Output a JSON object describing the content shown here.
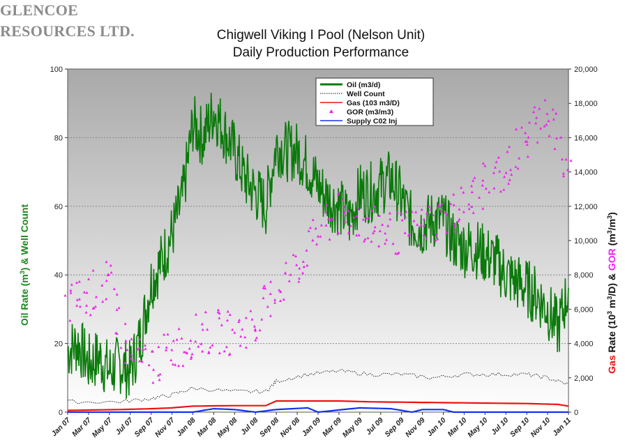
{
  "logo": {
    "line1": "GLENCOE",
    "line2": "RESOURCES LTD."
  },
  "chart_data": {
    "type": "line",
    "title": "Chigwell Viking I Pool (Nelson Unit)",
    "subtitle": "Daily Production Performance",
    "ylabel_left": [
      "Oil Rate (m",
      "3",
      ") & Well Count"
    ],
    "ylabel_right": [
      "Gas",
      " Rate (10",
      "3",
      " m",
      "3",
      "/D) & ",
      "GOR",
      " (m",
      "3",
      "/m",
      "3",
      ")"
    ],
    "x_start": "2007-01",
    "x_end": "2011-01",
    "x_ticks": [
      "Jan 07",
      "Mar 07",
      "May 07",
      "Jul 07",
      "Sep 07",
      "Nov 07",
      "Jan 08",
      "Mar 08",
      "May 08",
      "Jul 08",
      "Sep 08",
      "Nov 08",
      "Jan 09",
      "Mar 09",
      "May 09",
      "Jul 09",
      "Sep 09",
      "Nov 09",
      "Jan 10",
      "Mar 10",
      "May 10",
      "Jul 10",
      "Sep 10",
      "Nov 10",
      "Jan 11"
    ],
    "y_left_ticks": [
      "0",
      "20",
      "40",
      "60",
      "80",
      "100"
    ],
    "y_left_lim": [
      0,
      100
    ],
    "y_right_ticks": [
      "0",
      "2,000",
      "4,000",
      "6,000",
      "8,000",
      "10,000",
      "12,000",
      "14,000",
      "16,000",
      "18,000",
      "20,000"
    ],
    "y_right_lim": [
      0,
      20000
    ],
    "grid": true,
    "legend_position": "top-center",
    "colors": {
      "oil": "#0a7a0a",
      "well_count": "#111111",
      "gas": "#ee1111",
      "gor": "#ee22ee",
      "co2": "#1133ee"
    },
    "series": [
      {
        "name": "Oil (m3/d)",
        "axis": "left",
        "style": "line",
        "points": [
          [
            "2007-01",
            18
          ],
          [
            "2007-02",
            20
          ],
          [
            "2007-03",
            14
          ],
          [
            "2007-04",
            16
          ],
          [
            "2007-05",
            12
          ],
          [
            "2007-06",
            14
          ],
          [
            "2007-07",
            12
          ],
          [
            "2007-08",
            22
          ],
          [
            "2007-09",
            38
          ],
          [
            "2007-10",
            44
          ],
          [
            "2007-11",
            52
          ],
          [
            "2007-12",
            62
          ],
          [
            "2008-01",
            84
          ],
          [
            "2008-02",
            80
          ],
          [
            "2008-03",
            88
          ],
          [
            "2008-04",
            82
          ],
          [
            "2008-05",
            76
          ],
          [
            "2008-06",
            68
          ],
          [
            "2008-07",
            64
          ],
          [
            "2008-08",
            60
          ],
          [
            "2008-09",
            78
          ],
          [
            "2008-10",
            76
          ],
          [
            "2008-11",
            76
          ],
          [
            "2008-12",
            72
          ],
          [
            "2009-01",
            66
          ],
          [
            "2009-02",
            62
          ],
          [
            "2009-03",
            60
          ],
          [
            "2009-04",
            56
          ],
          [
            "2009-05",
            64
          ],
          [
            "2009-06",
            64
          ],
          [
            "2009-07",
            66
          ],
          [
            "2009-08",
            68
          ],
          [
            "2009-09",
            62
          ],
          [
            "2009-10",
            55
          ],
          [
            "2009-11",
            54
          ],
          [
            "2009-12",
            56
          ],
          [
            "2010-01",
            56
          ],
          [
            "2010-02",
            50
          ],
          [
            "2010-03",
            48
          ],
          [
            "2010-04",
            48
          ],
          [
            "2010-05",
            46
          ],
          [
            "2010-06",
            44
          ],
          [
            "2010-07",
            40
          ],
          [
            "2010-08",
            38
          ],
          [
            "2010-09",
            36
          ],
          [
            "2010-10",
            34
          ],
          [
            "2010-11",
            30
          ],
          [
            "2010-12",
            24
          ],
          [
            "2011-01",
            36
          ]
        ]
      },
      {
        "name": "Well Count",
        "axis": "left",
        "style": "dotted",
        "points": [
          [
            "2007-01",
            3
          ],
          [
            "2007-06",
            3
          ],
          [
            "2007-09",
            4
          ],
          [
            "2007-11",
            5
          ],
          [
            "2008-01",
            7
          ],
          [
            "2008-05",
            6
          ],
          [
            "2008-08",
            6
          ],
          [
            "2008-09",
            9
          ],
          [
            "2008-12",
            11
          ],
          [
            "2009-03",
            12
          ],
          [
            "2009-06",
            11
          ],
          [
            "2009-09",
            11
          ],
          [
            "2009-12",
            10
          ],
          [
            "2010-03",
            11
          ],
          [
            "2010-06",
            11
          ],
          [
            "2010-09",
            11
          ],
          [
            "2010-11",
            10
          ],
          [
            "2011-01",
            8
          ]
        ]
      },
      {
        "name": "Gas (103 m3/D)",
        "axis": "right",
        "style": "line",
        "points": [
          [
            "2007-01",
            100
          ],
          [
            "2007-06",
            150
          ],
          [
            "2007-09",
            200
          ],
          [
            "2007-11",
            250
          ],
          [
            "2008-01",
            350
          ],
          [
            "2008-05",
            380
          ],
          [
            "2008-08",
            380
          ],
          [
            "2008-09",
            650
          ],
          [
            "2009-03",
            650
          ],
          [
            "2009-06",
            600
          ],
          [
            "2009-09",
            580
          ],
          [
            "2009-12",
            560
          ],
          [
            "2010-03",
            540
          ],
          [
            "2010-06",
            520
          ],
          [
            "2010-09",
            500
          ],
          [
            "2010-12",
            450
          ],
          [
            "2011-01",
            350
          ]
        ]
      },
      {
        "name": "GOR (m3/m3)",
        "axis": "right",
        "style": "markers",
        "points": [
          [
            "2007-01",
            6200
          ],
          [
            "2007-03",
            6800
          ],
          [
            "2007-05",
            7600
          ],
          [
            "2007-07",
            3200
          ],
          [
            "2007-09",
            2800
          ],
          [
            "2007-11",
            3600
          ],
          [
            "2008-01",
            4400
          ],
          [
            "2008-03",
            4700
          ],
          [
            "2008-05",
            4600
          ],
          [
            "2008-07",
            5200
          ],
          [
            "2008-09",
            7000
          ],
          [
            "2008-11",
            8600
          ],
          [
            "2009-01",
            10500
          ],
          [
            "2009-03",
            11500
          ],
          [
            "2009-05",
            11200
          ],
          [
            "2009-07",
            10600
          ],
          [
            "2009-09",
            10400
          ],
          [
            "2009-11",
            10800
          ],
          [
            "2010-01",
            11400
          ],
          [
            "2010-03",
            12000
          ],
          [
            "2010-05",
            13200
          ],
          [
            "2010-07",
            14200
          ],
          [
            "2010-09",
            16000
          ],
          [
            "2010-11",
            17800
          ],
          [
            "2011-01",
            13500
          ]
        ]
      },
      {
        "name": "Supply C02 Inj",
        "axis": "right",
        "style": "line",
        "points": [
          [
            "2007-01",
            0
          ],
          [
            "2008-01",
            0
          ],
          [
            "2008-03",
            200
          ],
          [
            "2008-05",
            150
          ],
          [
            "2008-07",
            0
          ],
          [
            "2008-09",
            150
          ],
          [
            "2008-12",
            250
          ],
          [
            "2009-01",
            0
          ],
          [
            "2009-05",
            250
          ],
          [
            "2009-08",
            200
          ],
          [
            "2009-10",
            0
          ],
          [
            "2009-11",
            150
          ],
          [
            "2010-01",
            150
          ],
          [
            "2010-02",
            0
          ],
          [
            "2011-01",
            0
          ]
        ]
      }
    ]
  }
}
